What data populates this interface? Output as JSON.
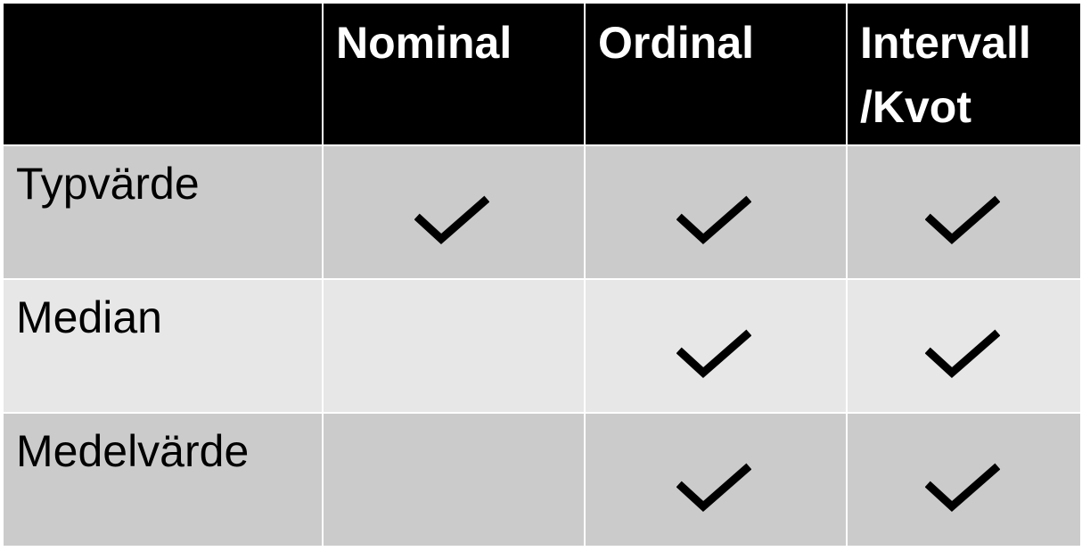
{
  "header": {
    "col0": "",
    "nominal": "Nominal",
    "ordinal": "Ordinal",
    "interval": "Intervall\n/Kvot"
  },
  "rows": [
    {
      "label": "Typvärde",
      "nominal": true,
      "ordinal": true,
      "interval": true
    },
    {
      "label": "Median",
      "nominal": false,
      "ordinal": true,
      "interval": true
    },
    {
      "label": "Medelvärde",
      "nominal": false,
      "ordinal": true,
      "interval": true
    }
  ],
  "icons": {
    "check": "checkmark-icon"
  },
  "colors": {
    "header_bg": "#000000",
    "header_text": "#ffffff",
    "row_dark": "#cbcbcb",
    "row_light": "#e7e7e7"
  }
}
